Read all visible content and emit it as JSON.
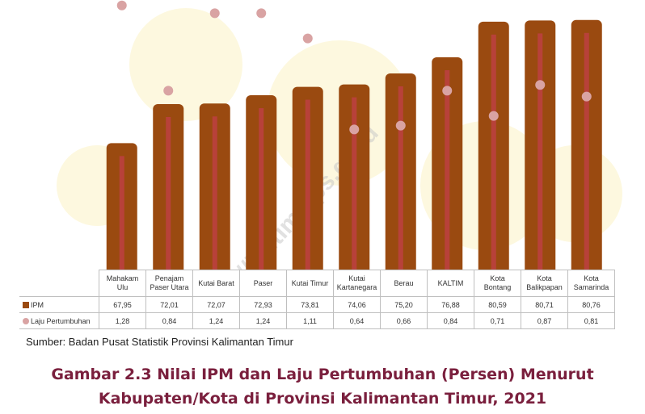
{
  "chart_data": {
    "type": "bar",
    "categories": [
      "Mahakam Ulu",
      "Penajam Paser Utara",
      "Kutai Barat",
      "Paser",
      "Kutai Timur",
      "Kutai Kartanegara",
      "Berau",
      "KALTIM",
      "Kota Bontang",
      "Kota Balikpapan",
      "Kota Samarinda"
    ],
    "series": [
      {
        "name": "IPM",
        "type": "bar",
        "values": [
          67.95,
          72.01,
          72.07,
          72.93,
          73.81,
          74.06,
          75.2,
          76.88,
          80.59,
          80.71,
          80.76
        ]
      },
      {
        "name": "Laju Pertumbuhan",
        "type": "scatter",
        "values": [
          1.28,
          0.84,
          1.24,
          1.24,
          1.11,
          0.64,
          0.66,
          0.84,
          0.71,
          0.87,
          0.81
        ]
      }
    ],
    "colors": {
      "ipm_bar": "#9a4a10",
      "ipm_inner": "#b8413a",
      "laju_dot": "#d9a3a3"
    },
    "legend": "table",
    "table": true,
    "grid": false
  },
  "table": {
    "headers": [
      [
        "Mahakam",
        "Ulu"
      ],
      [
        "Penajam",
        "Paser Utara"
      ],
      [
        "Kutai Barat"
      ],
      [
        "Paser"
      ],
      [
        "Kutai Timur"
      ],
      [
        "Kutai",
        "Kartanegara"
      ],
      [
        "Berau"
      ],
      [
        "KALTIM"
      ],
      [
        "Kota",
        "Bontang"
      ],
      [
        "Kota",
        "Balikpapan"
      ],
      [
        "Kota",
        "Samarinda"
      ]
    ],
    "row_labels": {
      "ipm": "IPM",
      "laju": "Laju Pertumbuhan"
    },
    "ipm": [
      "67,95",
      "72,01",
      "72,07",
      "72,93",
      "73,81",
      "74,06",
      "75,20",
      "76,88",
      "80,59",
      "80,71",
      "80,76"
    ],
    "laju": [
      "1,28",
      "0,84",
      "1,24",
      "1,24",
      "1,11",
      "0,64",
      "0,66",
      "0,84",
      "0,71",
      "0,87",
      "0,81"
    ]
  },
  "watermark": "https://kaltim.bps.go.id",
  "source": "Sumber: Badan Pusat Statistik Provinsi Kalimantan Timur",
  "caption": {
    "line1": "Gambar 2.3 Nilai IPM dan Laju Pertumbuhan (Persen) Menurut",
    "line2": "Kabupaten/Kota di Provinsi Kalimantan Timur, 2021"
  }
}
